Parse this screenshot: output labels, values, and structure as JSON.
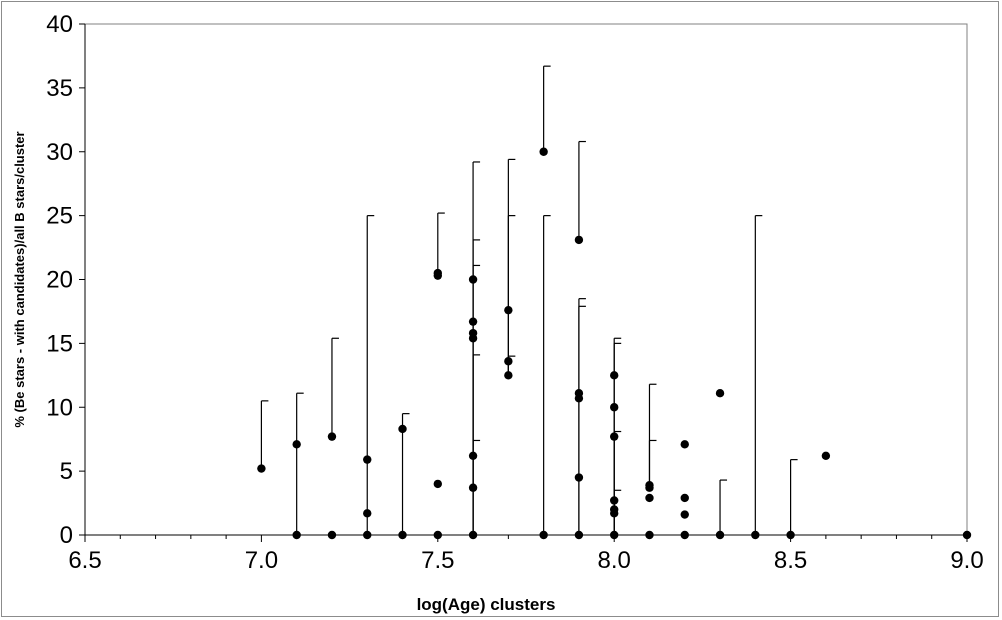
{
  "chart_data": {
    "type": "scatter",
    "title": "",
    "xlabel": "log(Age) clusters",
    "ylabel": "% (Be stars - with candidates)/all B stars/cluster",
    "xlim": [
      6.5,
      9.0
    ],
    "ylim": [
      0,
      40
    ],
    "xticks": [
      "6.5",
      "7.0",
      "7.5",
      "8.0",
      "8.5",
      "9.0"
    ],
    "yticks": [
      "0",
      "5",
      "10",
      "15",
      "20",
      "25",
      "30",
      "35",
      "40"
    ],
    "xtick_values": [
      6.5,
      7.0,
      7.5,
      8.0,
      8.5,
      9.0
    ],
    "ytick_values": [
      0,
      5,
      10,
      15,
      20,
      25,
      30,
      35,
      40
    ],
    "grid": false,
    "legend": "none",
    "marker_color": "#000000",
    "points": [
      {
        "x": 7.0,
        "y": 5.2
      },
      {
        "x": 7.1,
        "y": 7.1
      },
      {
        "x": 7.1,
        "y": 0
      },
      {
        "x": 7.2,
        "y": 7.7
      },
      {
        "x": 7.2,
        "y": 0
      },
      {
        "x": 7.3,
        "y": 5.9
      },
      {
        "x": 7.3,
        "y": 1.7
      },
      {
        "x": 7.3,
        "y": 0
      },
      {
        "x": 7.4,
        "y": 8.3
      },
      {
        "x": 7.4,
        "y": 0
      },
      {
        "x": 7.5,
        "y": 20.5
      },
      {
        "x": 7.5,
        "y": 20.3
      },
      {
        "x": 7.5,
        "y": 4.0
      },
      {
        "x": 7.5,
        "y": 0
      },
      {
        "x": 7.6,
        "y": 20.0
      },
      {
        "x": 7.6,
        "y": 16.7
      },
      {
        "x": 7.6,
        "y": 15.8
      },
      {
        "x": 7.6,
        "y": 15.4
      },
      {
        "x": 7.6,
        "y": 6.2
      },
      {
        "x": 7.6,
        "y": 3.7
      },
      {
        "x": 7.6,
        "y": 0
      },
      {
        "x": 7.7,
        "y": 17.6
      },
      {
        "x": 7.7,
        "y": 13.6
      },
      {
        "x": 7.7,
        "y": 12.5
      },
      {
        "x": 7.8,
        "y": 30.0
      },
      {
        "x": 7.8,
        "y": 0
      },
      {
        "x": 7.9,
        "y": 23.1
      },
      {
        "x": 7.9,
        "y": 11.1
      },
      {
        "x": 7.9,
        "y": 10.7
      },
      {
        "x": 7.9,
        "y": 4.5
      },
      {
        "x": 7.9,
        "y": 0
      },
      {
        "x": 8.0,
        "y": 12.5
      },
      {
        "x": 8.0,
        "y": 10.0
      },
      {
        "x": 8.0,
        "y": 7.7
      },
      {
        "x": 8.0,
        "y": 2.7
      },
      {
        "x": 8.0,
        "y": 2.0
      },
      {
        "x": 8.0,
        "y": 1.7
      },
      {
        "x": 8.0,
        "y": 0
      },
      {
        "x": 8.1,
        "y": 3.9
      },
      {
        "x": 8.1,
        "y": 3.7
      },
      {
        "x": 8.1,
        "y": 2.9
      },
      {
        "x": 8.1,
        "y": 0
      },
      {
        "x": 8.2,
        "y": 7.1
      },
      {
        "x": 8.2,
        "y": 2.9
      },
      {
        "x": 8.2,
        "y": 1.6
      },
      {
        "x": 8.2,
        "y": 0
      },
      {
        "x": 8.3,
        "y": 11.1
      },
      {
        "x": 8.3,
        "y": 0
      },
      {
        "x": 8.4,
        "y": 0
      },
      {
        "x": 8.5,
        "y": 0
      },
      {
        "x": 8.6,
        "y": 6.2
      },
      {
        "x": 9.0,
        "y": 0
      }
    ],
    "error_bars": [
      {
        "x": 7.0,
        "y": 5.2,
        "upper": 10.5
      },
      {
        "x": 7.1,
        "y": 0,
        "upper": 11.1
      },
      {
        "x": 7.2,
        "y": 7.7,
        "upper": 15.4
      },
      {
        "x": 7.3,
        "y": 0,
        "upper": 25.0
      },
      {
        "x": 7.4,
        "y": 0,
        "upper": 9.5
      },
      {
        "x": 7.5,
        "y": 20.5,
        "upper": 25.2
      },
      {
        "x": 7.6,
        "y": 3.7,
        "upper": 29.2
      },
      {
        "x": 7.6,
        "y": 0,
        "upper": 23.1
      },
      {
        "x": 7.6,
        "y": 0,
        "upper": 21.1
      },
      {
        "x": 7.6,
        "y": 0,
        "upper": 14.1
      },
      {
        "x": 7.6,
        "y": 0,
        "upper": 7.4
      },
      {
        "x": 7.7,
        "y": 12.5,
        "upper": 29.4
      },
      {
        "x": 7.7,
        "y": 12.5,
        "upper": 25.0
      },
      {
        "x": 7.7,
        "y": 12.5,
        "upper": 14.0
      },
      {
        "x": 7.8,
        "y": 30.0,
        "upper": 36.7
      },
      {
        "x": 7.8,
        "y": 0,
        "upper": 25.0
      },
      {
        "x": 7.9,
        "y": 23.1,
        "upper": 30.8
      },
      {
        "x": 7.9,
        "y": 0,
        "upper": 18.5
      },
      {
        "x": 7.9,
        "y": 0,
        "upper": 17.9
      },
      {
        "x": 8.0,
        "y": 0,
        "upper": 15.4
      },
      {
        "x": 8.0,
        "y": 0,
        "upper": 15.0
      },
      {
        "x": 8.0,
        "y": 0,
        "upper": 8.1
      },
      {
        "x": 8.0,
        "y": 0,
        "upper": 3.5
      },
      {
        "x": 8.1,
        "y": 3.7,
        "upper": 11.8
      },
      {
        "x": 8.1,
        "y": 3.7,
        "upper": 7.4
      },
      {
        "x": 8.3,
        "y": 0,
        "upper": 4.3
      },
      {
        "x": 8.4,
        "y": 0,
        "upper": 25.0
      },
      {
        "x": 8.5,
        "y": 0,
        "upper": 5.9
      }
    ]
  }
}
